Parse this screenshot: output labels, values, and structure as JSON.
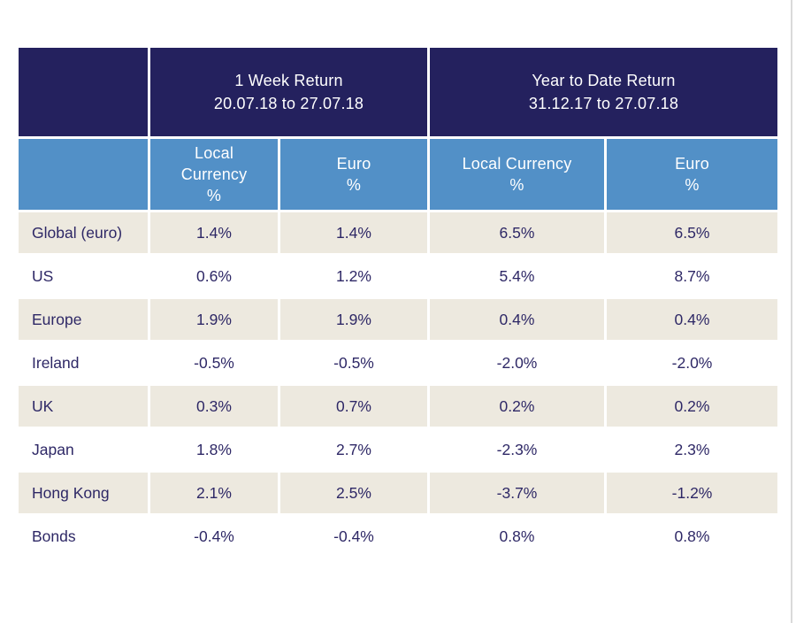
{
  "colors": {
    "header_bg": "#24215e",
    "subheader_bg": "#5290c7",
    "row_alt_bg": "#ede9df",
    "row_bg": "#ffffff",
    "header_text": "#ffffff",
    "cell_text": "#2e2866",
    "page_edge_line": "#dadada"
  },
  "table": {
    "groups": [
      {
        "title": "1 Week Return",
        "subtitle": "20.07.18 to 27.07.18",
        "columns": [
          "Local\nCurrency\n%",
          "Euro\n%"
        ]
      },
      {
        "title": "Year to Date Return",
        "subtitle": "31.12.17 to 27.07.18",
        "columns": [
          "Local Currency\n%",
          "Euro\n%"
        ]
      }
    ],
    "rows": [
      {
        "label": "Global (euro)",
        "values": [
          "1.4%",
          "1.4%",
          "6.5%",
          "6.5%"
        ]
      },
      {
        "label": "US",
        "values": [
          "0.6%",
          "1.2%",
          "5.4%",
          "8.7%"
        ]
      },
      {
        "label": "Europe",
        "values": [
          "1.9%",
          "1.9%",
          "0.4%",
          "0.4%"
        ]
      },
      {
        "label": "Ireland",
        "values": [
          "-0.5%",
          "-0.5%",
          "-2.0%",
          "-2.0%"
        ]
      },
      {
        "label": "UK",
        "values": [
          "0.3%",
          "0.7%",
          "0.2%",
          "0.2%"
        ]
      },
      {
        "label": "Japan",
        "values": [
          "1.8%",
          "2.7%",
          "-2.3%",
          "2.3%"
        ]
      },
      {
        "label": "Hong Kong",
        "values": [
          "2.1%",
          "2.5%",
          "-3.7%",
          "-1.2%"
        ]
      },
      {
        "label": "Bonds",
        "values": [
          "-0.4%",
          "-0.4%",
          "0.8%",
          "0.8%"
        ]
      }
    ]
  },
  "chart_data": {
    "type": "table",
    "title": "",
    "column_groups": [
      {
        "label": "1 Week Return",
        "sublabel": "20.07.18 to 27.07.18",
        "columns": [
          "Local Currency %",
          "Euro %"
        ]
      },
      {
        "label": "Year to Date Return",
        "sublabel": "31.12.17 to 27.07.18",
        "columns": [
          "Local Currency %",
          "Euro %"
        ]
      }
    ],
    "units": "%",
    "rows": [
      {
        "label": "Global (euro)",
        "week_local": 1.4,
        "week_euro": 1.4,
        "ytd_local": 6.5,
        "ytd_euro": 6.5
      },
      {
        "label": "US",
        "week_local": 0.6,
        "week_euro": 1.2,
        "ytd_local": 5.4,
        "ytd_euro": 8.7
      },
      {
        "label": "Europe",
        "week_local": 1.9,
        "week_euro": 1.9,
        "ytd_local": 0.4,
        "ytd_euro": 0.4
      },
      {
        "label": "Ireland",
        "week_local": -0.5,
        "week_euro": -0.5,
        "ytd_local": -2.0,
        "ytd_euro": -2.0
      },
      {
        "label": "UK",
        "week_local": 0.3,
        "week_euro": 0.7,
        "ytd_local": 0.2,
        "ytd_euro": 0.2
      },
      {
        "label": "Japan",
        "week_local": 1.8,
        "week_euro": 2.7,
        "ytd_local": -2.3,
        "ytd_euro": 2.3
      },
      {
        "label": "Hong Kong",
        "week_local": 2.1,
        "week_euro": 2.5,
        "ytd_local": -3.7,
        "ytd_euro": -1.2
      },
      {
        "label": "Bonds",
        "week_local": -0.4,
        "week_euro": -0.4,
        "ytd_local": 0.8,
        "ytd_euro": 0.8
      }
    ]
  }
}
